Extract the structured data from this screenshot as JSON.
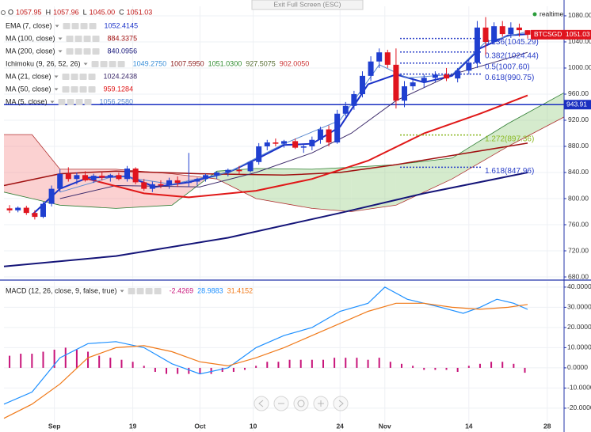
{
  "top": {
    "exit": "Exit Full Screen (ESC)",
    "realtime": "realtime"
  },
  "chart_data": [
    {
      "type": "candlestick",
      "symbol": "BTCSGD",
      "ohlc": [
        {
          "key": "O",
          "value": "1057.95"
        },
        {
          "key": "H",
          "value": "1057.96"
        },
        {
          "key": "L",
          "value": "1045.00"
        },
        {
          "key": "C",
          "value": "1051.03"
        }
      ],
      "xlim": [
        0,
        100
      ],
      "ylim": [
        677.6,
        1094.5
      ],
      "yticks": [
        {
          "value": 680,
          "label": "680.00"
        },
        {
          "value": 720,
          "label": "720.00"
        },
        {
          "value": 760,
          "label": "760.00"
        },
        {
          "value": 800,
          "label": "800.00"
        },
        {
          "value": 840,
          "label": "840.00"
        },
        {
          "value": 880,
          "label": "880.00"
        },
        {
          "value": 920,
          "label": "920.00"
        },
        {
          "value": 960,
          "label": "960.00"
        },
        {
          "value": 1000,
          "label": "1000.00"
        },
        {
          "value": 1040,
          "label": "1040.00"
        },
        {
          "value": 1080,
          "label": "1080.00"
        }
      ],
      "grid": true,
      "candles": {
        "up_color": "#1f3fd0",
        "down_color": "#e0141e",
        "x": [
          1,
          2.5,
          4,
          5.5,
          7,
          8.5,
          10,
          11.5,
          13,
          14.5,
          16,
          17.5,
          19,
          20.5,
          22,
          23.5,
          25,
          26.5,
          28,
          29.5,
          31,
          33,
          34.5,
          36,
          38,
          40,
          42,
          44,
          45.5,
          47,
          48.5,
          50,
          52,
          53.5,
          55,
          56.5,
          58,
          59.5,
          61,
          62.5,
          64,
          65.5,
          67,
          68.5,
          70,
          71.5,
          73,
          75,
          77,
          79,
          81,
          83,
          84.5,
          86,
          87.5,
          89,
          90.5,
          92,
          93.5
        ],
        "open": [
          785,
          782,
          786,
          778,
          772,
          792,
          815,
          838,
          830,
          836,
          828,
          835,
          832,
          836,
          830,
          846,
          825,
          815,
          822,
          820,
          828,
          824,
          826,
          830,
          836,
          840,
          844,
          842,
          856,
          880,
          886,
          884,
          888,
          878,
          880,
          890,
          906,
          886,
          930,
          942,
          960,
          988,
          1010,
          1024,
          1005,
          950,
          972,
          978,
          985,
          990,
          984,
          996,
          1008,
          1062,
          1040,
          1064,
          1052,
          1062,
          1057.95
        ],
        "high": [
          790,
          788,
          789,
          782,
          795,
          820,
          845,
          848,
          840,
          842,
          838,
          841,
          838,
          840,
          850,
          848,
          830,
          826,
          828,
          832,
          834,
          870,
          832,
          838,
          842,
          846,
          850,
          858,
          885,
          890,
          892,
          890,
          892,
          884,
          895,
          910,
          912,
          936,
          948,
          965,
          995,
          1018,
          1030,
          1028,
          1030,
          980,
          985,
          990,
          995,
          1000,
          1000,
          1012,
          1072,
          1078,
          1070,
          1072,
          1070,
          1068,
          1057.96
        ],
        "low": [
          778,
          779,
          775,
          768,
          770,
          788,
          810,
          826,
          822,
          826,
          824,
          828,
          826,
          828,
          826,
          822,
          812,
          810,
          816,
          815,
          818,
          818,
          820,
          826,
          830,
          834,
          838,
          840,
          852,
          874,
          880,
          878,
          876,
          870,
          874,
          884,
          880,
          884,
          926,
          936,
          955,
          980,
          1000,
          1000,
          938,
          940,
          966,
          970,
          978,
          980,
          978,
          990,
          1000,
          1020,
          1036,
          1048,
          1046,
          1048,
          1045
        ],
        "close": [
          782,
          786,
          778,
          772,
          792,
          815,
          838,
          830,
          836,
          828,
          835,
          832,
          836,
          830,
          846,
          825,
          815,
          822,
          820,
          828,
          824,
          826,
          830,
          836,
          840,
          844,
          842,
          856,
          880,
          886,
          884,
          888,
          878,
          880,
          890,
          906,
          886,
          930,
          942,
          960,
          988,
          1010,
          1024,
          1005,
          950,
          972,
          978,
          985,
          990,
          984,
          996,
          1008,
          1062,
          1040,
          1064,
          1052,
          1062,
          1058,
          1051.03
        ]
      },
      "series": [
        {
          "kind": "line",
          "name": "EMA (7, close)",
          "color": "#1a32c8",
          "width": 2,
          "legend": [
            "1052.4145"
          ],
          "x": [
            5,
            10,
            15,
            22,
            27,
            33,
            40,
            45,
            50,
            55,
            60,
            65,
            70,
            75,
            80,
            85,
            90,
            93.5
          ],
          "values": [
            775,
            815,
            832,
            834,
            818,
            825,
            840,
            860,
            882,
            884,
            910,
            975,
            990,
            978,
            988,
            1030,
            1050,
            1052
          ]
        },
        {
          "kind": "line",
          "name": "MA (100, close)",
          "color": "#a01010",
          "width": 1.5,
          "legend": [
            "884.3375"
          ],
          "x": [
            0,
            10,
            20,
            35,
            50,
            60,
            70,
            80,
            93.5
          ],
          "values": [
            820,
            838,
            842,
            838,
            836,
            840,
            852,
            866,
            885
          ]
        },
        {
          "kind": "line",
          "name": "MA (200, close)",
          "color": "#141478",
          "width": 2,
          "legend": [
            "840.0956"
          ],
          "x": [
            0,
            20,
            40,
            60,
            75,
            93.5
          ],
          "values": [
            696,
            712,
            740,
            778,
            808,
            840
          ]
        },
        {
          "kind": "cloud",
          "name": "Ichimoku (9, 26, 52, 26)",
          "color": "#2e7d32",
          "color_b": "#b03030",
          "legend": [
            "1049.2750",
            "1007.5950",
            "1051.0300",
            "927.5075",
            "902.0050"
          ],
          "legend_colors": [
            "#3a8fd8",
            "#8b1a1a",
            "#2e8b2e",
            "#556b2f",
            "#cc3333"
          ],
          "x": [
            0,
            5,
            10,
            20,
            30,
            38,
            45,
            55,
            62,
            70,
            80,
            90,
            100
          ],
          "span_a": [
            810,
            800,
            790,
            785,
            790,
            842,
            846,
            845,
            848,
            852,
            862,
            915,
            962
          ],
          "span_b": [
            898,
            898,
            845,
            845,
            838,
            830,
            800,
            785,
            780,
            790,
            830,
            880,
            925
          ]
        },
        {
          "kind": "line",
          "name": "MA (21, close)",
          "color": "#3d2b6b",
          "width": 1,
          "legend": [
            "1024.2438"
          ],
          "x": [
            10,
            20,
            35,
            45,
            55,
            62,
            70,
            80,
            88,
            93.5
          ],
          "values": [
            800,
            820,
            818,
            840,
            870,
            900,
            950,
            990,
            1010,
            1024
          ]
        },
        {
          "kind": "line",
          "name": "MA (50, close)",
          "color": "#e01818",
          "width": 2,
          "legend": [
            "959.1284"
          ],
          "x": [
            15,
            25,
            33,
            45,
            55,
            65,
            75,
            85,
            93.5
          ],
          "values": [
            830,
            808,
            802,
            812,
            830,
            858,
            900,
            930,
            958
          ]
        },
        {
          "kind": "line",
          "name": "MA (5, close)",
          "color": "#5a8ad0",
          "width": 1,
          "legend": [
            "1056.2580"
          ],
          "x": [
            10,
            20,
            30,
            40,
            50,
            60,
            67,
            72,
            80,
            86,
            93.5
          ],
          "values": [
            810,
            835,
            822,
            840,
            884,
            920,
            1005,
            985,
            990,
            1040,
            1056
          ]
        }
      ],
      "hline": {
        "value": 943.91,
        "color": "#1a2fc0"
      },
      "fib": [
        {
          "value": 1045.29,
          "label": "0.236(1045.29)",
          "color": "#2a3fc8"
        },
        {
          "value": 1024.44,
          "label": "0.382(1024.44)",
          "color": "#2a3fc8"
        },
        {
          "value": 1007.6,
          "label": "0.5(1007.60)",
          "color": "#2a3fc8"
        },
        {
          "value": 990.75,
          "label": "0.618(990.75)",
          "color": "#2a3fc8"
        },
        {
          "value": 897.36,
          "label": "1.272(897.36)",
          "color": "#8ab822"
        },
        {
          "value": 847.96,
          "label": "1.618(847.96)",
          "color": "#2a3fc8"
        }
      ]
    },
    {
      "type": "macd",
      "name": "MACD (12, 26, close, 9, false, true)",
      "legend": [
        "-2.4269",
        "28.9883",
        "31.4152"
      ],
      "xlim": [
        0,
        100
      ],
      "ylim": [
        -31.4,
        42.7
      ],
      "yticks": [
        {
          "value": 40,
          "label": "40.0000"
        },
        {
          "value": 30,
          "label": "30.0000"
        },
        {
          "value": 20,
          "label": "20.0000"
        },
        {
          "value": 10,
          "label": "10.0000"
        },
        {
          "value": 0,
          "label": "0.0000"
        },
        {
          "value": -10,
          "label": "-10.0000"
        },
        {
          "value": -20,
          "label": "-20.0000"
        }
      ],
      "xticks": [
        {
          "value": 9,
          "label": "Sep"
        },
        {
          "value": 23,
          "label": "19"
        },
        {
          "value": 35,
          "label": "Oct"
        },
        {
          "value": 44.5,
          "label": "10"
        },
        {
          "value": 60,
          "label": "24"
        },
        {
          "value": 68,
          "label": "Nov"
        },
        {
          "value": 83,
          "label": "14"
        },
        {
          "value": 97,
          "label": "28"
        }
      ],
      "histogram": {
        "color": "#c8147a",
        "x": [
          1,
          3,
          5,
          7,
          9,
          11,
          13,
          15,
          17,
          19,
          21,
          23,
          25,
          27,
          29,
          31,
          33,
          35,
          37,
          39,
          41,
          43,
          45,
          47,
          49,
          51,
          53,
          55,
          57,
          59,
          61,
          63,
          65,
          67,
          69,
          71,
          73,
          75,
          77,
          79,
          81,
          83,
          85,
          87,
          89,
          91,
          93
        ],
        "values": [
          6,
          7,
          7,
          8,
          9,
          10,
          9,
          8,
          6,
          5,
          4,
          3,
          1,
          -2,
          -3,
          -3,
          -3,
          -3,
          -3,
          -2,
          -2,
          -1,
          1,
          3,
          3,
          4,
          4,
          4,
          4,
          5,
          5,
          5,
          4,
          5,
          3,
          2,
          1,
          -1,
          -1,
          -1,
          -2,
          1,
          2,
          3,
          3,
          2,
          -2.4269
        ]
      },
      "series": [
        {
          "name": "MACD",
          "color": "#1e90ff",
          "x": [
            0,
            5,
            10,
            15,
            20,
            25,
            30,
            35,
            40,
            45,
            50,
            55,
            60,
            65,
            68,
            72,
            75,
            78,
            82,
            85,
            88,
            91,
            93.5
          ],
          "values": [
            -18,
            -12,
            5,
            12,
            13,
            10,
            2,
            -3,
            0,
            10,
            16,
            20,
            28,
            32,
            40,
            34,
            32,
            30,
            27,
            30,
            34,
            32,
            28.9883
          ]
        },
        {
          "name": "Signal",
          "color": "#f07a1a",
          "x": [
            0,
            5,
            10,
            15,
            20,
            25,
            30,
            35,
            40,
            45,
            50,
            55,
            60,
            65,
            70,
            75,
            80,
            85,
            90,
            93.5
          ],
          "values": [
            -25,
            -18,
            -8,
            5,
            10,
            11,
            8,
            3,
            1,
            5,
            10,
            16,
            22,
            28,
            32,
            32,
            30,
            29,
            30,
            31.4152
          ]
        }
      ]
    }
  ]
}
